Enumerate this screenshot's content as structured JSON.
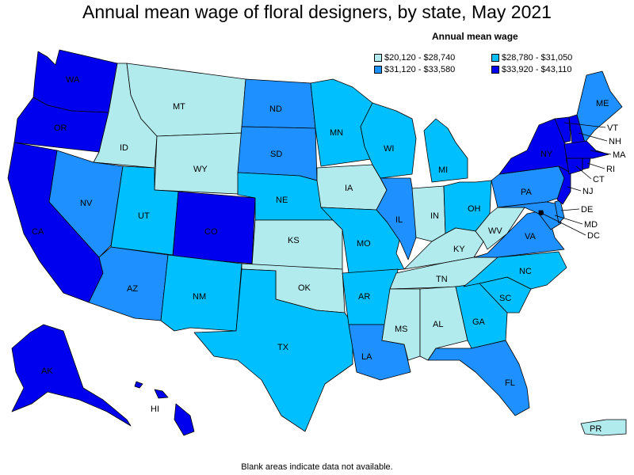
{
  "title": "Annual mean wage of floral designers, by state, May 2021",
  "legend": {
    "title": "Annual mean wage",
    "items": [
      {
        "label": "$20,120 - $28,740",
        "color": "#b2ebee"
      },
      {
        "label": "$28,780 - $31,050",
        "color": "#00bfff"
      },
      {
        "label": "$31,120 - $33,580",
        "color": "#1e90ff"
      },
      {
        "label": "$33,920 - $43,110",
        "color": "#0000ee"
      }
    ]
  },
  "footnote": "Blank areas indicate data not available.",
  "states": [
    {
      "abbr": "WA",
      "tier": 3
    },
    {
      "abbr": "OR",
      "tier": 3
    },
    {
      "abbr": "CA",
      "tier": 3
    },
    {
      "abbr": "ID",
      "tier": 0
    },
    {
      "abbr": "NV",
      "tier": 2
    },
    {
      "abbr": "MT",
      "tier": 0
    },
    {
      "abbr": "WY",
      "tier": 0
    },
    {
      "abbr": "UT",
      "tier": 1
    },
    {
      "abbr": "AZ",
      "tier": 2
    },
    {
      "abbr": "CO",
      "tier": 3
    },
    {
      "abbr": "NM",
      "tier": 1
    },
    {
      "abbr": "ND",
      "tier": 2
    },
    {
      "abbr": "SD",
      "tier": 2
    },
    {
      "abbr": "NE",
      "tier": 1
    },
    {
      "abbr": "KS",
      "tier": 0
    },
    {
      "abbr": "OK",
      "tier": 0
    },
    {
      "abbr": "TX",
      "tier": 1
    },
    {
      "abbr": "MN",
      "tier": 1
    },
    {
      "abbr": "IA",
      "tier": 0
    },
    {
      "abbr": "MO",
      "tier": 1
    },
    {
      "abbr": "AR",
      "tier": 1
    },
    {
      "abbr": "LA",
      "tier": 2
    },
    {
      "abbr": "WI",
      "tier": 1
    },
    {
      "abbr": "IL",
      "tier": 2
    },
    {
      "abbr": "MI",
      "tier": 1
    },
    {
      "abbr": "IN",
      "tier": 0
    },
    {
      "abbr": "OH",
      "tier": 1
    },
    {
      "abbr": "KY",
      "tier": 0
    },
    {
      "abbr": "TN",
      "tier": 0
    },
    {
      "abbr": "MS",
      "tier": 0
    },
    {
      "abbr": "AL",
      "tier": 0
    },
    {
      "abbr": "GA",
      "tier": 1
    },
    {
      "abbr": "FL",
      "tier": 2
    },
    {
      "abbr": "SC",
      "tier": 1
    },
    {
      "abbr": "NC",
      "tier": 1
    },
    {
      "abbr": "VA",
      "tier": 2
    },
    {
      "abbr": "WV",
      "tier": 0
    },
    {
      "abbr": "PA",
      "tier": 2
    },
    {
      "abbr": "NY",
      "tier": 3
    },
    {
      "abbr": "VT",
      "tier": 3
    },
    {
      "abbr": "NH",
      "tier": 3
    },
    {
      "abbr": "ME",
      "tier": 2
    },
    {
      "abbr": "MA",
      "tier": 3
    },
    {
      "abbr": "RI",
      "tier": 3
    },
    {
      "abbr": "CT",
      "tier": 3
    },
    {
      "abbr": "NJ",
      "tier": 3
    },
    {
      "abbr": "DE",
      "tier": 2
    },
    {
      "abbr": "MD",
      "tier": 2
    },
    {
      "abbr": "DC",
      "tier": 3
    },
    {
      "abbr": "AK",
      "tier": 3
    },
    {
      "abbr": "HI",
      "tier": 3
    },
    {
      "abbr": "PR",
      "tier": 0
    }
  ]
}
